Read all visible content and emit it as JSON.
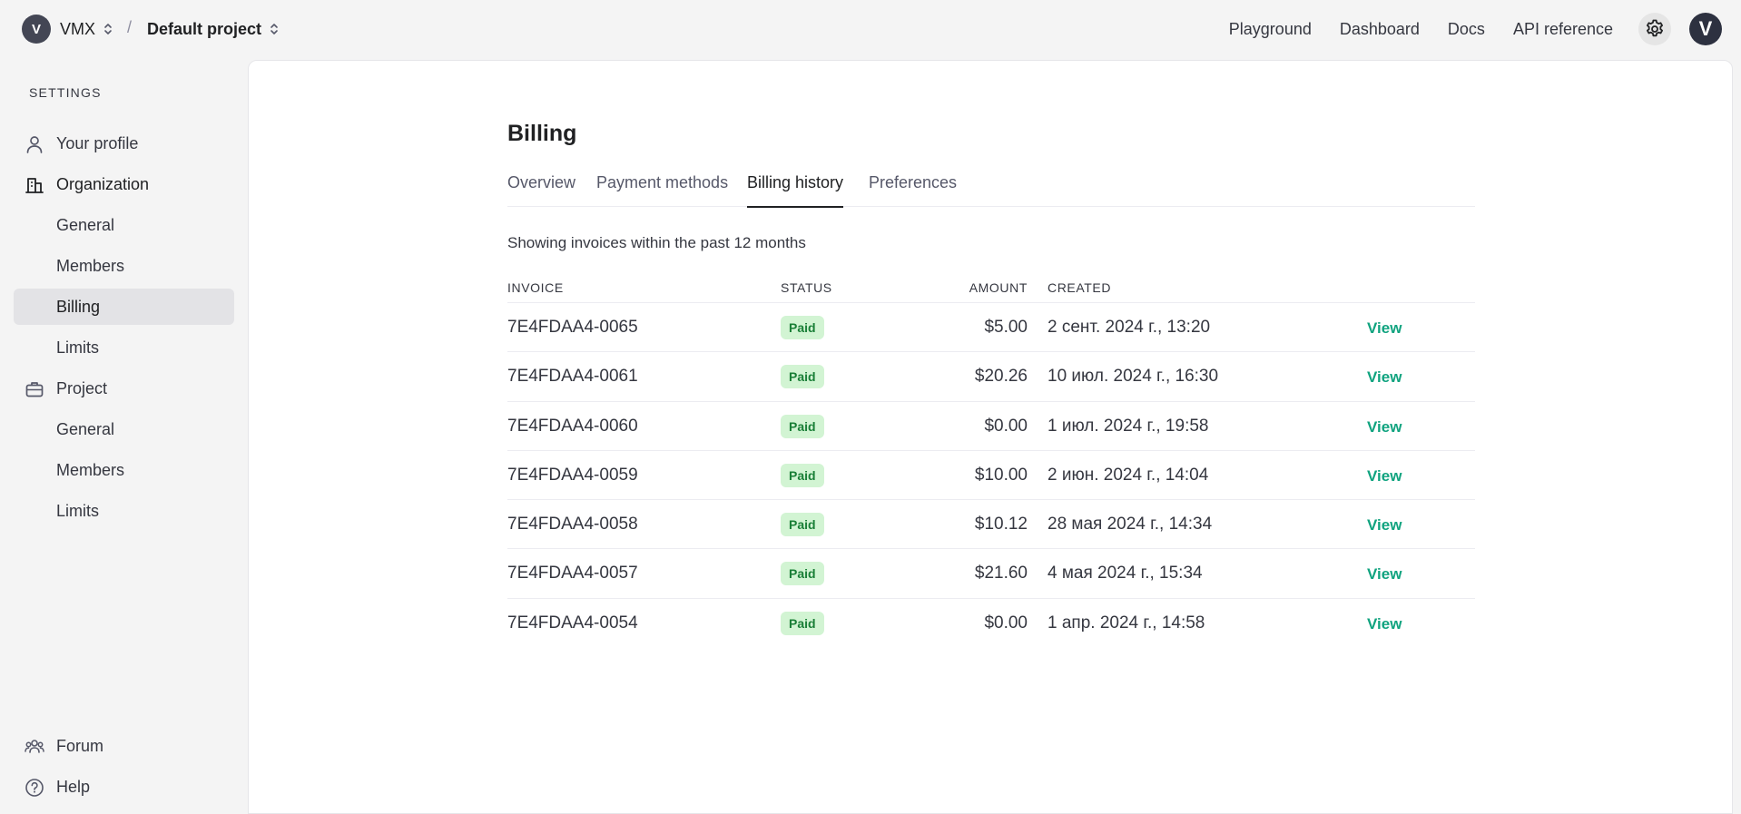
{
  "topbar": {
    "org_initial": "V",
    "org_name": "VMX",
    "breadcrumb_separator": "/",
    "project_name": "Default project",
    "nav": [
      "Playground",
      "Dashboard",
      "Docs",
      "API reference"
    ],
    "user_initial": "V"
  },
  "sidebar": {
    "heading": "SETTINGS",
    "items": [
      {
        "label": "Your profile",
        "icon": "user-icon"
      },
      {
        "label": "Organization",
        "icon": "building-icon"
      },
      {
        "label": "General"
      },
      {
        "label": "Members"
      },
      {
        "label": "Billing"
      },
      {
        "label": "Limits"
      },
      {
        "label": "Project",
        "icon": "briefcase-icon"
      },
      {
        "label": "General"
      },
      {
        "label": "Members"
      },
      {
        "label": "Limits"
      }
    ],
    "footer": [
      {
        "label": "Forum",
        "icon": "people-icon"
      },
      {
        "label": "Help",
        "icon": "help-icon"
      }
    ]
  },
  "billing": {
    "title": "Billing",
    "tabs": [
      "Overview",
      "Payment methods",
      "Billing history",
      "Preferences"
    ],
    "active_tab": "Billing history",
    "subtitle": "Showing invoices within the past 12 months",
    "columns": {
      "invoice": "INVOICE",
      "status": "STATUS",
      "amount": "AMOUNT",
      "created": "CREATED"
    },
    "rows": [
      {
        "invoice": "7E4FDAA4-0065",
        "status": "Paid",
        "amount": "$5.00",
        "created": "2 сент. 2024 г., 13:20",
        "action": "View"
      },
      {
        "invoice": "7E4FDAA4-0061",
        "status": "Paid",
        "amount": "$20.26",
        "created": "10 июл. 2024 г., 16:30",
        "action": "View"
      },
      {
        "invoice": "7E4FDAA4-0060",
        "status": "Paid",
        "amount": "$0.00",
        "created": "1 июл. 2024 г., 19:58",
        "action": "View"
      },
      {
        "invoice": "7E4FDAA4-0059",
        "status": "Paid",
        "amount": "$10.00",
        "created": "2 июн. 2024 г., 14:04",
        "action": "View"
      },
      {
        "invoice": "7E4FDAA4-0058",
        "status": "Paid",
        "amount": "$10.12",
        "created": "28 мая 2024 г., 14:34",
        "action": "View"
      },
      {
        "invoice": "7E4FDAA4-0057",
        "status": "Paid",
        "amount": "$21.60",
        "created": "4 мая 2024 г., 15:34",
        "action": "View"
      },
      {
        "invoice": "7E4FDAA4-0054",
        "status": "Paid",
        "amount": "$0.00",
        "created": "1 апр. 2024 г., 14:58",
        "action": "View"
      }
    ]
  },
  "colors": {
    "accent": "#10a37f",
    "badge_bg": "#d2f4d3",
    "badge_text": "#1a7f37",
    "active_bg": "#e3e3e6"
  }
}
